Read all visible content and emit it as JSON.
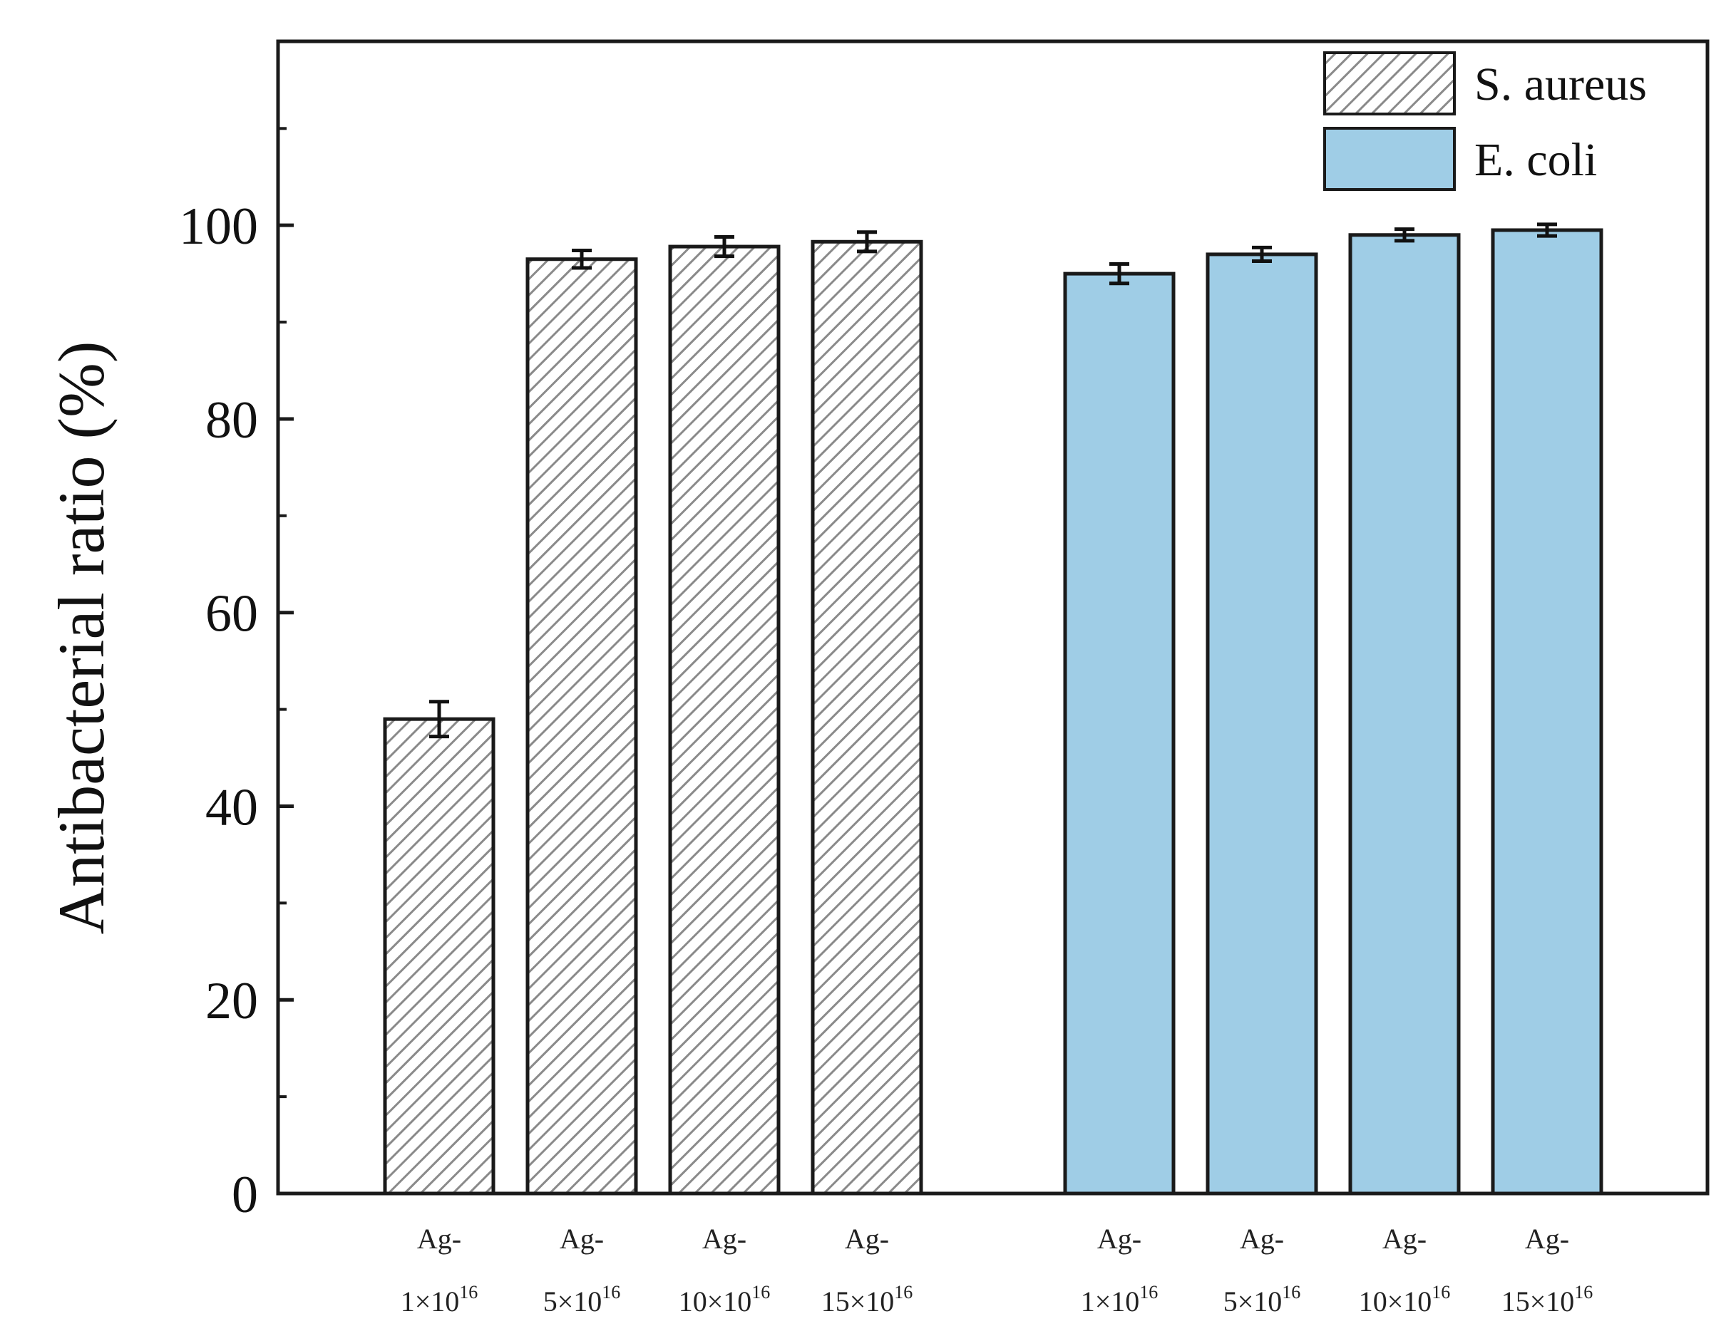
{
  "chart_data": {
    "type": "bar",
    "title": "",
    "xlabel": "",
    "ylabel": "Antibacterial ratio (%)",
    "ylim": [
      0,
      119
    ],
    "yticks": [
      0,
      20,
      40,
      60,
      80,
      100
    ],
    "grid": false,
    "legend_position": "top-right",
    "categories": [
      {
        "line1": "Ag-",
        "base": "1×10",
        "exp": "16"
      },
      {
        "line1": "Ag-",
        "base": "5×10",
        "exp": "16"
      },
      {
        "line1": "Ag-",
        "base": "10×10",
        "exp": "16"
      },
      {
        "line1": "Ag-",
        "base": "15×10",
        "exp": "16"
      }
    ],
    "series": [
      {
        "name": "S. aureus",
        "style": "hatched",
        "fill": "#ffffff",
        "hatch_color": "#8a8a8a",
        "values": [
          49.0,
          96.5,
          97.8,
          98.3
        ],
        "errors": [
          1.8,
          0.9,
          1.0,
          1.0
        ]
      },
      {
        "name": "E. coli",
        "style": "solid",
        "fill": "#9fcde6",
        "values": [
          95.0,
          97.0,
          99.0,
          99.5
        ],
        "errors": [
          1.0,
          0.7,
          0.6,
          0.6
        ]
      }
    ]
  },
  "colors": {
    "axis": "#1a1a1a",
    "bar_edge": "#1a1a1a",
    "ecoli_fill": "#9fcde6",
    "hatch": "#8a8a8a"
  }
}
